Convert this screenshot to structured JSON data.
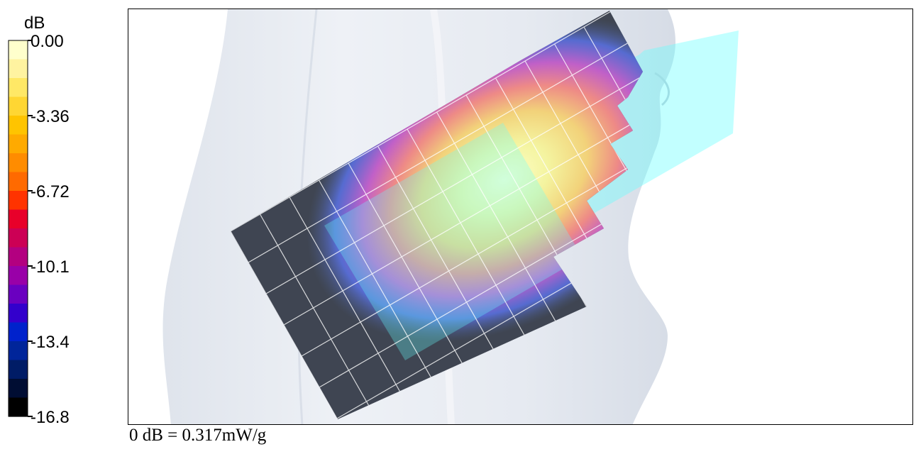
{
  "legend": {
    "unit": "dB",
    "ticks": [
      "0.00",
      "-3.36",
      "-6.72",
      "-10.1",
      "-13.4",
      "-16.8"
    ],
    "colors": [
      "#ffffcc",
      "#fff3a0",
      "#ffe866",
      "#ffd633",
      "#ffc400",
      "#ffaa00",
      "#ff8c00",
      "#ff6a00",
      "#ff3300",
      "#e8002a",
      "#cc0055",
      "#b30080",
      "#9900a8",
      "#6a00c0",
      "#3300cc",
      "#0022cc",
      "#00259a",
      "#001c66",
      "#000d33",
      "#000000"
    ],
    "tick_color": "#000000"
  },
  "scene": {
    "figure_icon": "human-torso-phantom",
    "grid_icon": "measurement-grid",
    "overlay_color": "#66ffff"
  },
  "reference": "0 dB = 0.317mW/g"
}
